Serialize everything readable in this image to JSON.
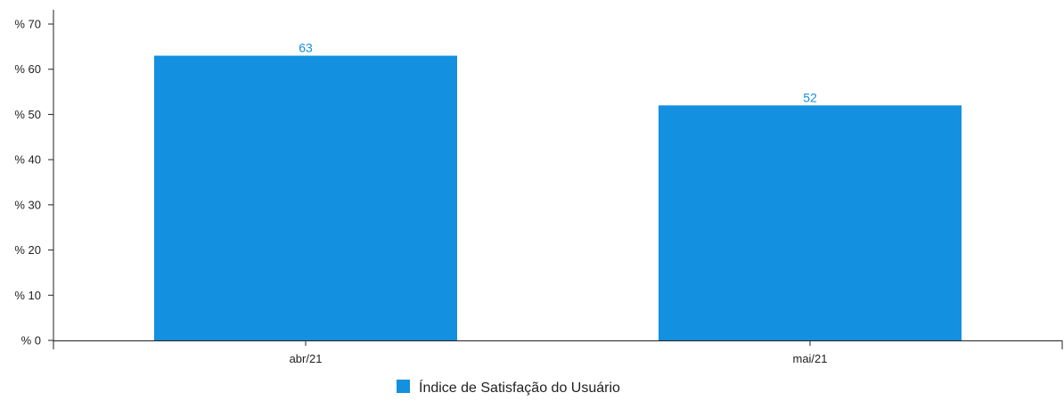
{
  "chart_data": {
    "type": "bar",
    "categories": [
      "abr/21",
      "mai/21"
    ],
    "series": [
      {
        "name": "Índice de Satisfação do Usuário",
        "values": [
          63,
          52
        ],
        "color": "#1390df"
      }
    ],
    "y_ticks": [
      "% 0",
      "% 10",
      "% 20",
      "% 30",
      "% 40",
      "% 50",
      "% 60",
      "% 70"
    ],
    "ylim": [
      0,
      70
    ],
    "data_labels": [
      "63",
      "52"
    ],
    "grid": false,
    "legend_position": "bottom",
    "colors": {
      "bar": "#1390df",
      "data_label": "#1390df",
      "axis": "#222222"
    }
  }
}
